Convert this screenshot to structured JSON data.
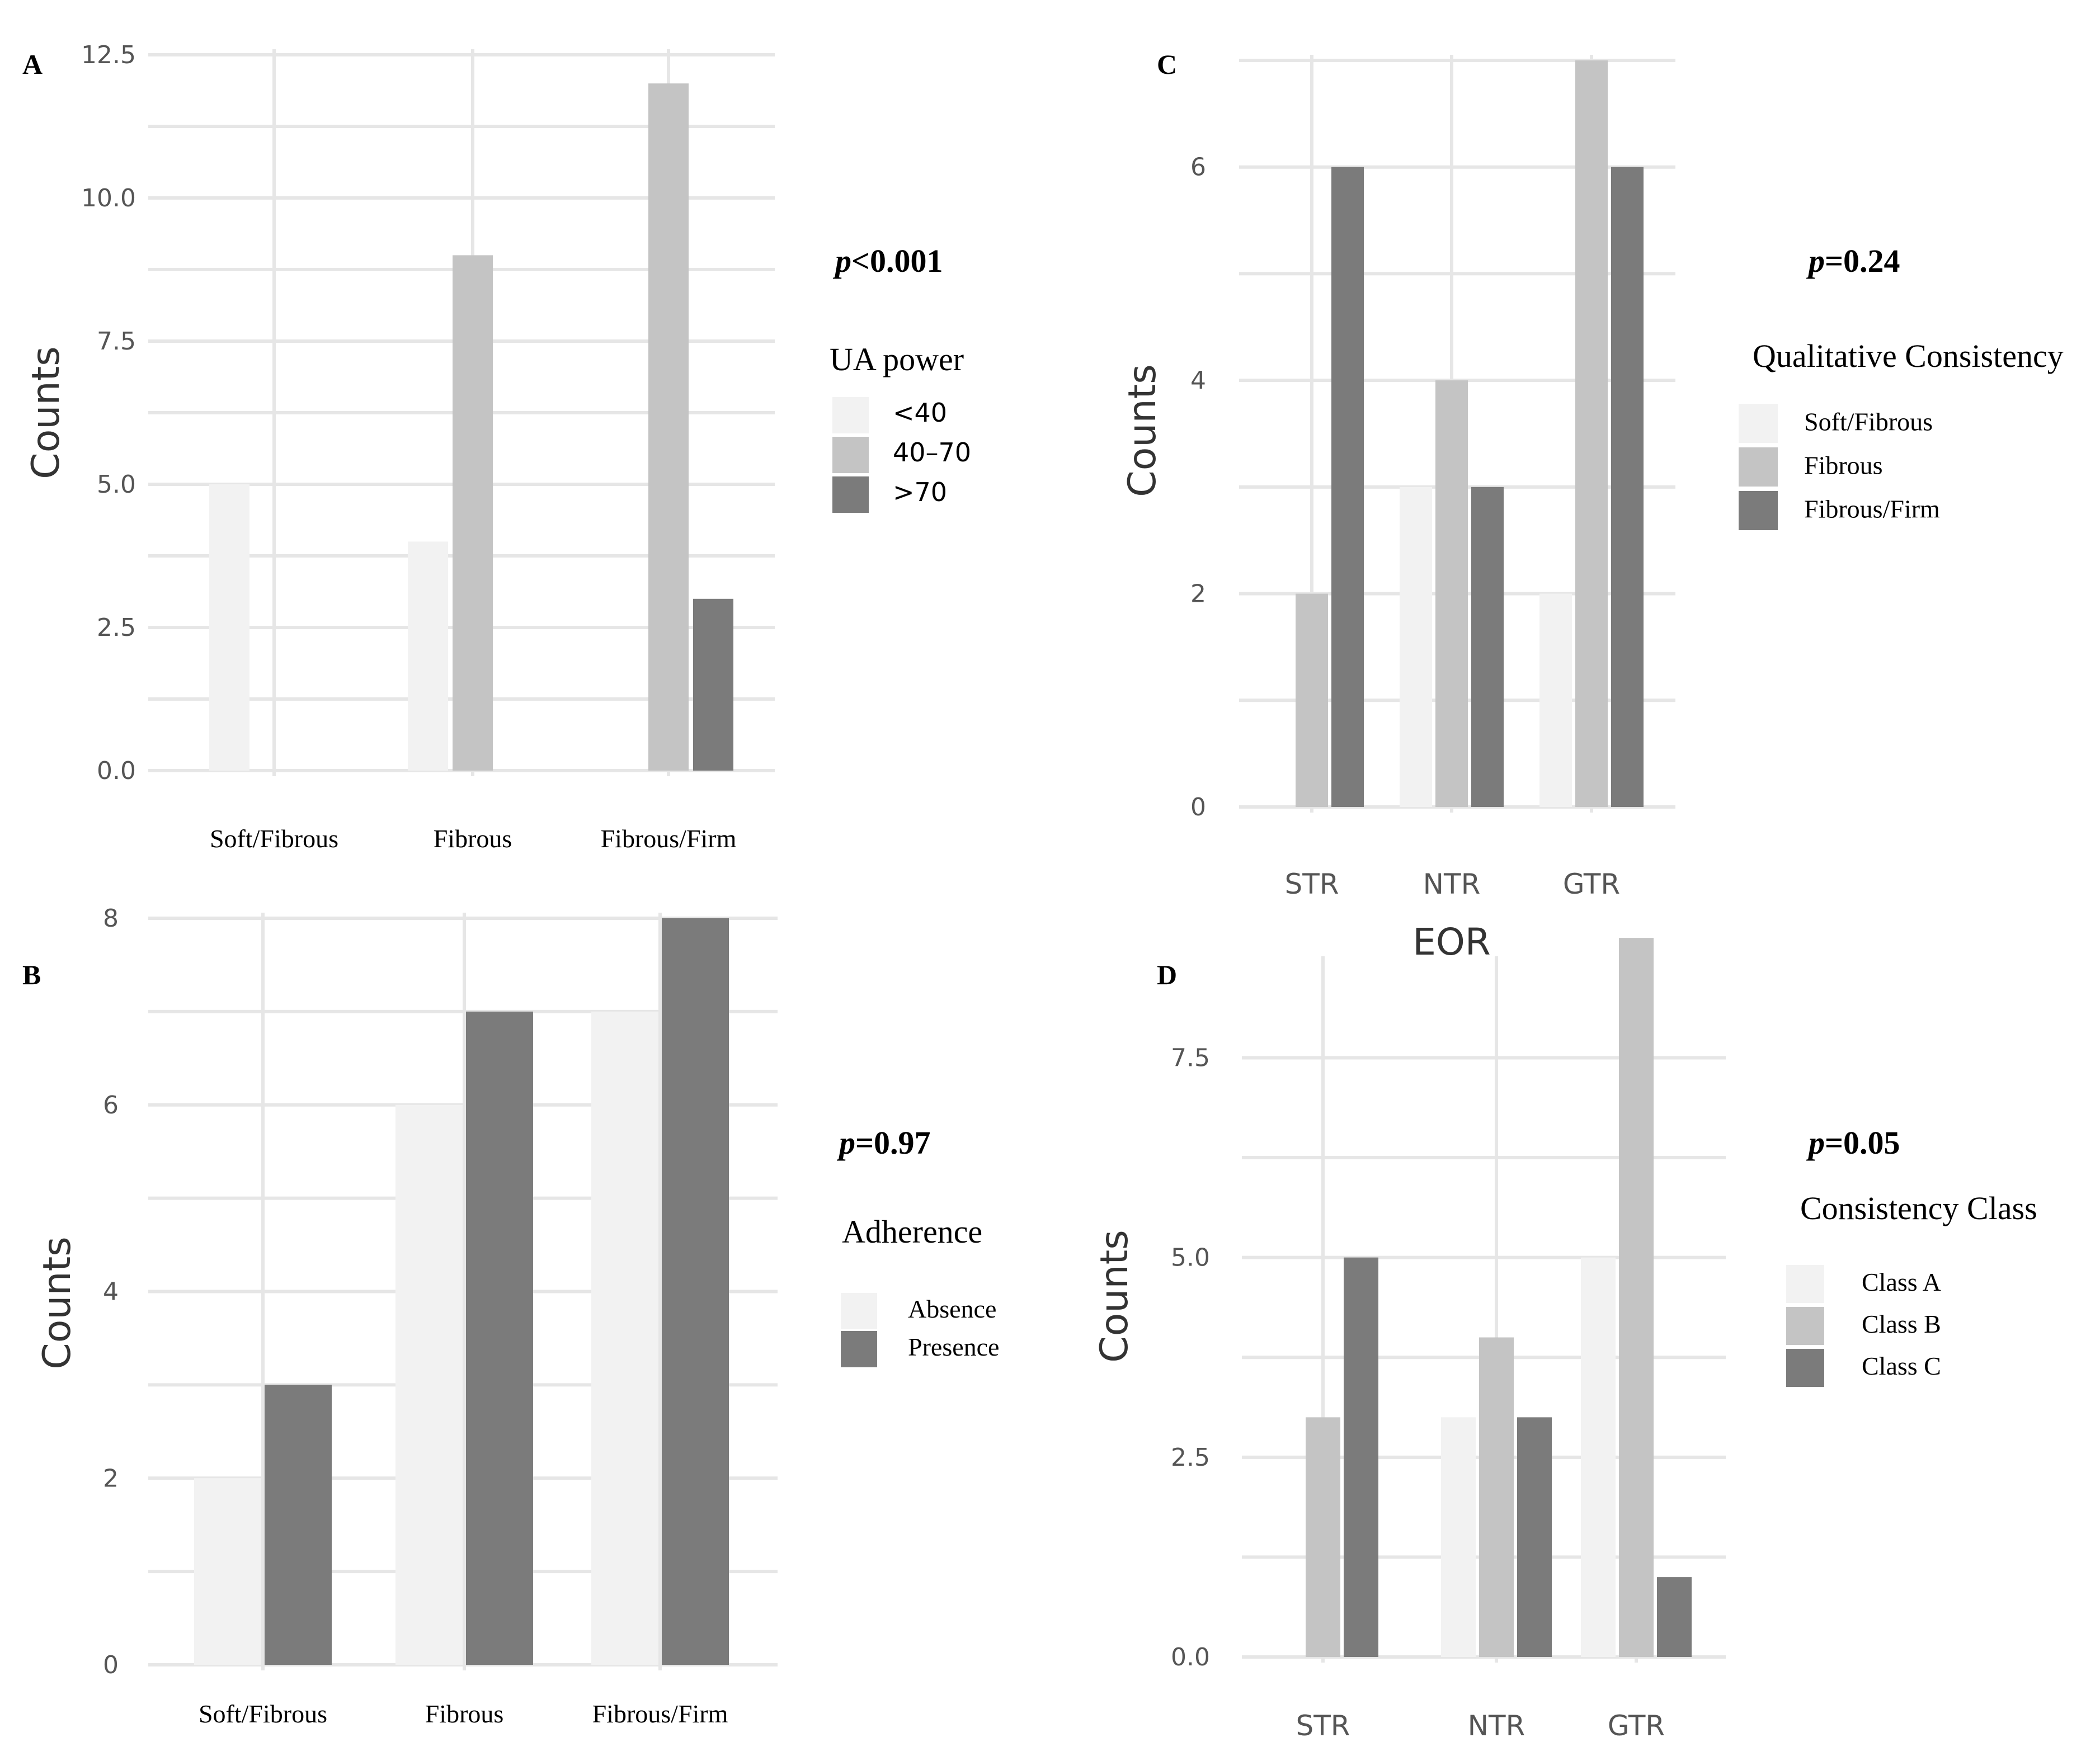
{
  "colors": {
    "light": "#f2f2f2",
    "mid": "#c4c4c4",
    "dark": "#7b7b7b",
    "grid": "#e6e6e6"
  },
  "chart_data": [
    {
      "panel": "A",
      "type": "bar",
      "ylabel": "Counts",
      "xlabel": "",
      "categories": [
        "Soft/Fibrous",
        "Fibrous",
        "Fibrous/Firm"
      ],
      "ylim": [
        0,
        12.5
      ],
      "yticks": [
        "0.0",
        "2.5",
        "5.0",
        "7.5",
        "10.0",
        "12.5"
      ],
      "legend_title": "UA power",
      "legend_placement": "right",
      "pvalue": {
        "prefix": "p",
        "text": "<0.001"
      },
      "series": [
        {
          "name": "<40",
          "color": "light",
          "values": [
            5,
            4,
            0
          ]
        },
        {
          "name": "40–70",
          "color": "mid",
          "values": [
            0,
            9,
            12
          ]
        },
        {
          "name": ">70",
          "color": "dark",
          "values": [
            0,
            0,
            3
          ]
        }
      ]
    },
    {
      "panel": "B",
      "type": "bar",
      "ylabel": "Counts",
      "xlabel": "",
      "categories": [
        "Soft/Fibrous",
        "Fibrous",
        "Fibrous/Firm"
      ],
      "ylim": [
        0,
        8
      ],
      "yticks": [
        "0",
        "2",
        "4",
        "6",
        "8"
      ],
      "legend_title": "Adherence",
      "legend_placement": "right",
      "pvalue": {
        "prefix": "p",
        "text": "=0.97"
      },
      "series": [
        {
          "name": "Absence",
          "color": "light",
          "values": [
            2,
            6,
            7
          ]
        },
        {
          "name": "Presence",
          "color": "dark",
          "values": [
            3,
            7,
            8
          ]
        }
      ]
    },
    {
      "panel": "C",
      "type": "bar",
      "ylabel": "Counts",
      "xlabel": "EOR",
      "categories": [
        "STR",
        "NTR",
        "GTR"
      ],
      "ylim": [
        0,
        7
      ],
      "yticks": [
        "0",
        "2",
        "4",
        "6"
      ],
      "legend_title": "Qualitative Consistency",
      "legend_placement": "right",
      "pvalue": {
        "prefix": "p",
        "text": "=0.24"
      },
      "series": [
        {
          "name": "Soft/Fibrous",
          "color": "light",
          "values": [
            0,
            3,
            2
          ]
        },
        {
          "name": "Fibrous",
          "color": "mid",
          "values": [
            2,
            4,
            7
          ]
        },
        {
          "name": "Fibrous/Firm",
          "color": "dark",
          "values": [
            6,
            3,
            6
          ]
        }
      ]
    },
    {
      "panel": "D",
      "type": "bar",
      "ylabel": "Counts",
      "xlabel": "",
      "categories": [
        "STR",
        "NTR",
        "GTR"
      ],
      "ylim": [
        0,
        8.7
      ],
      "yticks": [
        "0.0",
        "2.5",
        "5.0",
        "7.5"
      ],
      "legend_title": "Consistency Class",
      "legend_placement": "right",
      "pvalue": {
        "prefix": "p",
        "text": "=0.05"
      },
      "series": [
        {
          "name": "Class A",
          "color": "light",
          "values": [
            0,
            3,
            5
          ]
        },
        {
          "name": "Class B",
          "color": "mid",
          "values": [
            3,
            4,
            9
          ]
        },
        {
          "name": "Class C",
          "color": "dark",
          "values": [
            5,
            3,
            1
          ]
        }
      ]
    }
  ]
}
